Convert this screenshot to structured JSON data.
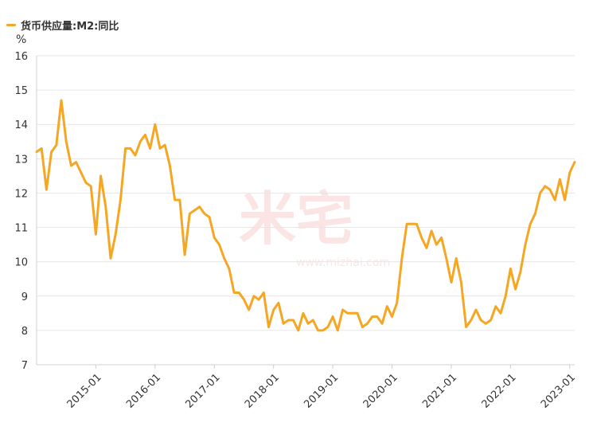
{
  "legend": {
    "label": "货币供应量:M2:同比",
    "color": "#f5a623"
  },
  "watermark": {
    "text": "米宅",
    "url": "www.mizhai.com"
  },
  "chart_data": {
    "type": "line",
    "ylabel": "%",
    "ylim": [
      7,
      16
    ],
    "yticks": [
      7,
      8,
      9,
      10,
      11,
      12,
      13,
      14,
      15,
      16
    ],
    "xlim": [
      "2014-01",
      "2023-02"
    ],
    "xticks": [
      "2015-01",
      "2016-01",
      "2017-01",
      "2018-01",
      "2019-01",
      "2020-01",
      "2021-01",
      "2022-01",
      "2023-01"
    ],
    "grid": "horizontal",
    "series": [
      {
        "name": "货币供应量:M2:同比",
        "color": "#f5a623",
        "x": [
          "2014-01",
          "2014-02",
          "2014-03",
          "2014-04",
          "2014-05",
          "2014-06",
          "2014-07",
          "2014-08",
          "2014-09",
          "2014-10",
          "2014-11",
          "2014-12",
          "2015-01",
          "2015-02",
          "2015-03",
          "2015-04",
          "2015-05",
          "2015-06",
          "2015-07",
          "2015-08",
          "2015-09",
          "2015-10",
          "2015-11",
          "2015-12",
          "2016-01",
          "2016-02",
          "2016-03",
          "2016-04",
          "2016-05",
          "2016-06",
          "2016-07",
          "2016-08",
          "2016-09",
          "2016-10",
          "2016-11",
          "2016-12",
          "2017-01",
          "2017-02",
          "2017-03",
          "2017-04",
          "2017-05",
          "2017-06",
          "2017-07",
          "2017-08",
          "2017-09",
          "2017-10",
          "2017-11",
          "2017-12",
          "2018-01",
          "2018-02",
          "2018-03",
          "2018-04",
          "2018-05",
          "2018-06",
          "2018-07",
          "2018-08",
          "2018-09",
          "2018-10",
          "2018-11",
          "2018-12",
          "2019-01",
          "2019-02",
          "2019-03",
          "2019-04",
          "2019-05",
          "2019-06",
          "2019-07",
          "2019-08",
          "2019-09",
          "2019-10",
          "2019-11",
          "2019-12",
          "2020-01",
          "2020-02",
          "2020-03",
          "2020-04",
          "2020-05",
          "2020-06",
          "2020-07",
          "2020-08",
          "2020-09",
          "2020-10",
          "2020-11",
          "2020-12",
          "2021-01",
          "2021-02",
          "2021-03",
          "2021-04",
          "2021-05",
          "2021-06",
          "2021-07",
          "2021-08",
          "2021-09",
          "2021-10",
          "2021-11",
          "2021-12",
          "2022-01",
          "2022-02",
          "2022-03",
          "2022-04",
          "2022-05",
          "2022-06",
          "2022-07",
          "2022-08",
          "2022-09",
          "2022-10",
          "2022-11",
          "2022-12",
          "2023-01",
          "2023-02"
        ],
        "values": [
          13.2,
          13.3,
          12.1,
          13.2,
          13.4,
          14.7,
          13.5,
          12.8,
          12.9,
          12.6,
          12.3,
          12.2,
          10.8,
          12.5,
          11.6,
          10.1,
          10.8,
          11.8,
          13.3,
          13.3,
          13.1,
          13.5,
          13.7,
          13.3,
          14.0,
          13.3,
          13.4,
          12.8,
          11.8,
          11.8,
          10.2,
          11.4,
          11.5,
          11.6,
          11.4,
          11.3,
          10.7,
          10.5,
          10.1,
          9.8,
          9.1,
          9.1,
          8.9,
          8.6,
          9.0,
          8.9,
          9.1,
          8.1,
          8.6,
          8.8,
          8.2,
          8.3,
          8.3,
          8.0,
          8.5,
          8.2,
          8.3,
          8.0,
          8.0,
          8.1,
          8.4,
          8.0,
          8.6,
          8.5,
          8.5,
          8.5,
          8.1,
          8.2,
          8.4,
          8.4,
          8.2,
          8.7,
          8.4,
          8.8,
          10.1,
          11.1,
          11.1,
          11.1,
          10.7,
          10.4,
          10.9,
          10.5,
          10.7,
          10.1,
          9.4,
          10.1,
          9.4,
          8.1,
          8.3,
          8.6,
          8.3,
          8.2,
          8.3,
          8.7,
          8.5,
          9.0,
          9.8,
          9.2,
          9.7,
          10.5,
          11.1,
          11.4,
          12.0,
          12.2,
          12.1,
          11.8,
          12.4,
          11.8,
          12.6,
          12.9
        ]
      }
    ]
  }
}
